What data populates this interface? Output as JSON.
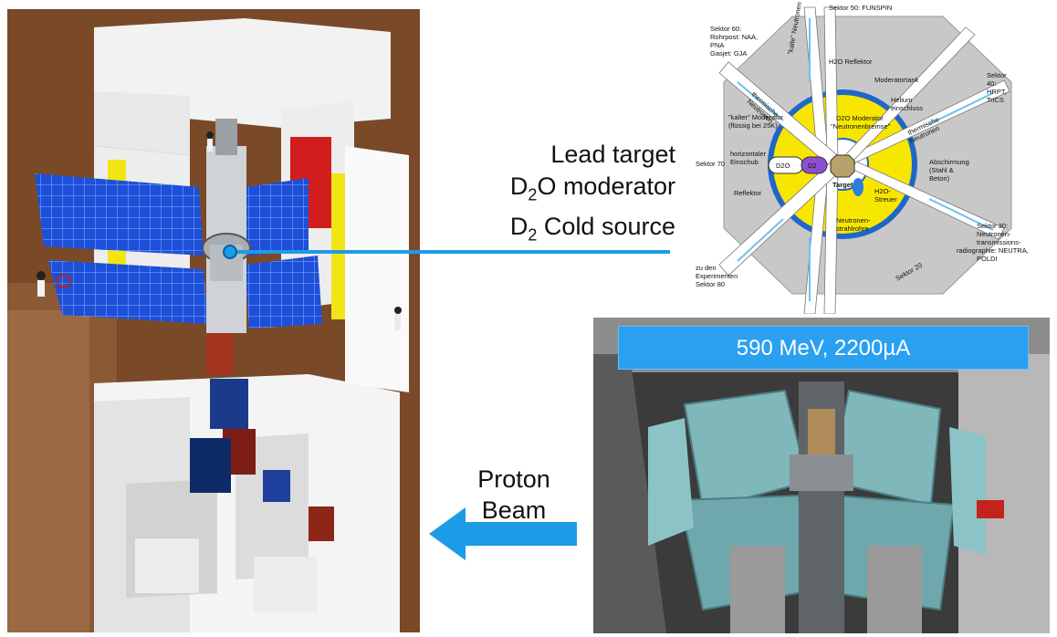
{
  "labels": {
    "lead_target": "Lead target",
    "moderator_prefix": "D",
    "moderator_sub": "2",
    "moderator_suffix": "O moderator",
    "cold_prefix": "D",
    "cold_sub": "2",
    "cold_suffix": " Cold source"
  },
  "beam": {
    "line1": "Proton",
    "line2": "Beam"
  },
  "banner": {
    "text": "590 MeV, 2200µA"
  },
  "diagram": {
    "sektor_50": "Sektor 50: FUNSPIN",
    "sektor_60": [
      "Sektor 60:",
      "Rohrpost: NAA,",
      "PNA",
      "Gasjet: GJA"
    ],
    "sektor_40": [
      "Sektor",
      "40:",
      "HRPT,",
      "TriCS"
    ],
    "sektor_70": "Sektor 70",
    "sektor_30": [
      "Sektor 30:",
      "Neutronen-",
      "transmissions-",
      "radiographie: NEUTRA,",
      "POLDI"
    ],
    "sektor_20": "Sektor 20",
    "sektor_80": [
      "zu den",
      "Experimenten",
      "Sektor 80"
    ],
    "h2o_reflektor": "H2O Reflektor",
    "moderatortank": "Moderatortank",
    "helium": [
      "Helium",
      "einschluss"
    ],
    "d2o_moderator": [
      "D2O Moderator",
      "\"Neutronenbremse\""
    ],
    "kalter_moderator": [
      "\"kalter\" Moderator",
      "(flüssig bei 25K)"
    ],
    "horizontaler": [
      "horizontaler",
      "Einschub"
    ],
    "d2o_box": "D2O",
    "d2_box": "D2",
    "target": "Target",
    "h2o_streuer": [
      "H2O-",
      "Streuer"
    ],
    "reflektor": "Reflektor",
    "abschirmung": [
      "Abschirmung",
      "(Stahl &",
      "Beton)"
    ],
    "strahlrohre": [
      "Neutronen-",
      "strahlrohre"
    ],
    "thermische": [
      "thermische",
      "Neutronen"
    ],
    "kalte": "\"kalte\" Neutronen"
  },
  "colors": {
    "accent_blue": "#1c9ce6",
    "banner_blue": "#2aa0f0",
    "moderator_yellow": "#f7e600",
    "reflector_blue": "#1f66c9",
    "shield_gray": "#c8c8c8",
    "cyclotron_teal": "#7fb7bb"
  }
}
